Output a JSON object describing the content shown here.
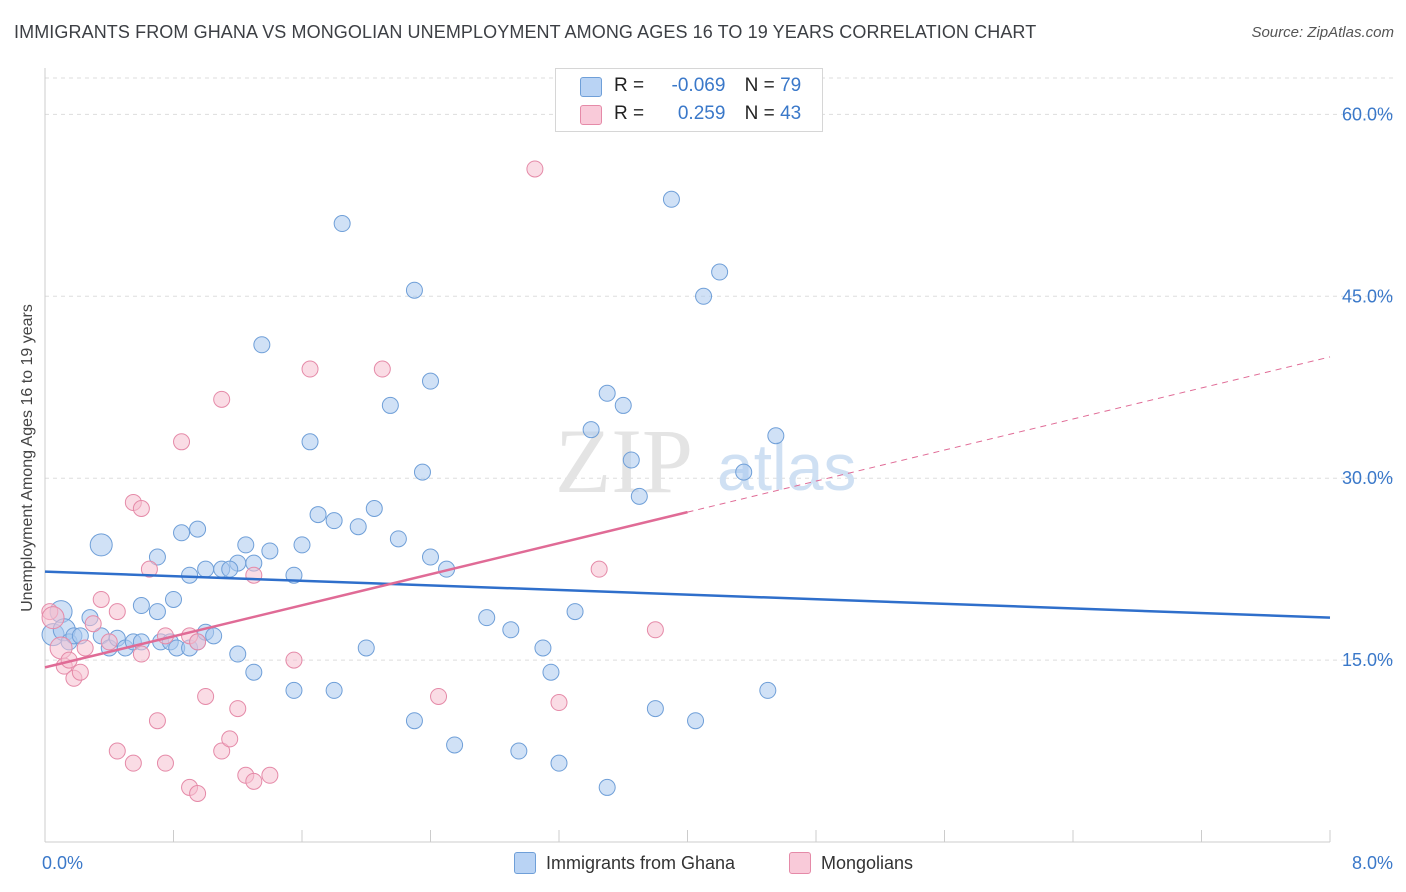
{
  "title": "IMMIGRANTS FROM GHANA VS MONGOLIAN UNEMPLOYMENT AMONG AGES 16 TO 19 YEARS CORRELATION CHART",
  "source": "Source: ZipAtlas.com",
  "watermark": {
    "zip": "ZIP",
    "atlas": "atlas"
  },
  "legend": {
    "rows": [
      {
        "r_label": "R =",
        "r_value": "-0.069",
        "n_label": "N =",
        "n_value": "79"
      },
      {
        "r_label": "R =",
        "r_value": "0.259",
        "n_label": "N =",
        "n_value": "43"
      }
    ]
  },
  "bottom_legend": {
    "series1": "Immigrants from Ghana",
    "series2": "Mongolians"
  },
  "colors": {
    "ghana_fill": "#aac8ef",
    "ghana_stroke": "#6f9fd8",
    "ghana_line": "#2f6fcb",
    "mongol_fill": "#f6bfd0",
    "mongol_stroke": "#e58aa8",
    "mongol_line": "#e06b96",
    "tick_label": "#3a78c9",
    "grid": "#dddddd"
  },
  "chart_data": {
    "type": "scatter",
    "ylabel": "Unemployment Among Ages 16 to 19 years",
    "xlabel": "",
    "x_tick_labels": [
      "0.0%",
      "8.0%"
    ],
    "y_tick_labels": [
      "15.0%",
      "30.0%",
      "45.0%",
      "60.0%"
    ],
    "y_ticks": [
      15,
      30,
      45,
      60
    ],
    "xlim": [
      0,
      8
    ],
    "ylim": [
      0,
      63
    ],
    "series": [
      {
        "name": "Immigrants from Ghana",
        "trend": {
          "x": [
            0,
            8
          ],
          "y": [
            22.3,
            18.5
          ]
        },
        "points": [
          [
            0.05,
            17.1,
            1
          ],
          [
            0.1,
            19.0,
            1
          ],
          [
            0.12,
            17.5,
            1
          ],
          [
            0.15,
            16.5,
            0
          ],
          [
            0.18,
            17.0,
            0
          ],
          [
            0.22,
            17.0,
            0
          ],
          [
            0.28,
            18.5,
            0
          ],
          [
            0.35,
            17.0,
            0
          ],
          [
            0.4,
            16.0,
            0
          ],
          [
            0.45,
            16.8,
            0
          ],
          [
            0.5,
            16.0,
            0
          ],
          [
            0.55,
            16.5,
            0
          ],
          [
            0.6,
            16.5,
            0
          ],
          [
            0.72,
            16.5,
            0
          ],
          [
            0.78,
            16.5,
            0
          ],
          [
            0.82,
            16.0,
            0
          ],
          [
            0.9,
            16.0,
            0
          ],
          [
            0.95,
            16.5,
            0
          ],
          [
            1.0,
            17.3,
            0
          ],
          [
            1.05,
            17.0,
            0
          ],
          [
            0.6,
            19.5,
            0
          ],
          [
            0.7,
            19.0,
            0
          ],
          [
            0.8,
            20.0,
            0
          ],
          [
            0.9,
            22.0,
            0
          ],
          [
            1.0,
            22.5,
            0
          ],
          [
            1.1,
            22.5,
            0
          ],
          [
            1.2,
            23.0,
            0
          ],
          [
            1.3,
            23.0,
            0
          ],
          [
            0.35,
            24.5,
            1
          ],
          [
            0.7,
            23.5,
            0
          ],
          [
            0.85,
            25.5,
            0
          ],
          [
            0.95,
            25.8,
            0
          ],
          [
            1.15,
            22.5,
            0
          ],
          [
            1.25,
            24.5,
            0
          ],
          [
            1.4,
            24.0,
            0
          ],
          [
            1.55,
            22.0,
            0
          ],
          [
            1.6,
            24.5,
            0
          ],
          [
            1.7,
            27.0,
            0
          ],
          [
            1.8,
            26.5,
            0
          ],
          [
            1.95,
            26.0,
            0
          ],
          [
            2.05,
            27.5,
            0
          ],
          [
            2.2,
            25.0,
            0
          ],
          [
            2.4,
            23.5,
            0
          ],
          [
            2.5,
            22.5,
            0
          ],
          [
            2.75,
            18.5,
            0
          ],
          [
            2.9,
            17.5,
            0
          ],
          [
            3.1,
            16.0,
            0
          ],
          [
            3.15,
            14.0,
            0
          ],
          [
            3.3,
            19.0,
            0
          ],
          [
            3.4,
            34.0,
            0
          ],
          [
            3.5,
            37.0,
            0
          ],
          [
            3.6,
            36.0,
            0
          ],
          [
            3.65,
            31.5,
            0
          ],
          [
            3.7,
            28.5,
            0
          ],
          [
            3.9,
            53.0,
            0
          ],
          [
            4.1,
            45.0,
            0
          ],
          [
            4.2,
            47.0,
            0
          ],
          [
            4.35,
            30.5,
            0
          ],
          [
            4.5,
            12.5,
            0
          ],
          [
            1.35,
            41.0,
            0
          ],
          [
            1.65,
            33.0,
            0
          ],
          [
            1.85,
            51.0,
            0
          ],
          [
            2.15,
            36.0,
            0
          ],
          [
            2.3,
            45.5,
            0
          ],
          [
            2.35,
            30.5,
            0
          ],
          [
            2.4,
            38.0,
            0
          ],
          [
            1.2,
            15.5,
            0
          ],
          [
            1.3,
            14.0,
            0
          ],
          [
            1.55,
            12.5,
            0
          ],
          [
            1.8,
            12.5,
            0
          ],
          [
            2.0,
            16.0,
            0
          ],
          [
            2.3,
            10.0,
            0
          ],
          [
            2.55,
            8.0,
            0
          ],
          [
            2.95,
            7.5,
            0
          ],
          [
            3.2,
            6.5,
            0
          ],
          [
            3.5,
            4.5,
            0
          ],
          [
            3.8,
            11.0,
            0
          ],
          [
            4.05,
            10.0,
            0
          ],
          [
            4.55,
            33.5,
            0
          ]
        ]
      },
      {
        "name": "Mongolians",
        "trend": {
          "x": [
            0,
            4.0
          ],
          "y": [
            14.4,
            27.2
          ]
        },
        "trend_dashed": {
          "x": [
            4.0,
            8.0
          ],
          "y": [
            27.2,
            40.0
          ]
        },
        "points": [
          [
            0.03,
            19.0,
            0
          ],
          [
            0.05,
            18.5,
            1
          ],
          [
            0.1,
            16.0,
            1
          ],
          [
            0.12,
            14.5,
            0
          ],
          [
            0.15,
            15.0,
            0
          ],
          [
            0.18,
            13.5,
            0
          ],
          [
            0.22,
            14.0,
            0
          ],
          [
            0.25,
            16.0,
            0
          ],
          [
            0.3,
            18.0,
            0
          ],
          [
            0.35,
            20.0,
            0
          ],
          [
            0.4,
            16.5,
            0
          ],
          [
            0.45,
            19.0,
            0
          ],
          [
            0.55,
            28.0,
            0
          ],
          [
            0.6,
            27.5,
            0
          ],
          [
            0.65,
            22.5,
            0
          ],
          [
            0.75,
            17.0,
            0
          ],
          [
            0.85,
            33.0,
            0
          ],
          [
            0.9,
            17.0,
            0
          ],
          [
            0.95,
            16.5,
            0
          ],
          [
            1.1,
            36.5,
            0
          ],
          [
            1.2,
            11.0,
            0
          ],
          [
            1.3,
            22.0,
            0
          ],
          [
            0.45,
            7.5,
            0
          ],
          [
            0.55,
            6.5,
            0
          ],
          [
            0.7,
            10.0,
            0
          ],
          [
            0.75,
            6.5,
            0
          ],
          [
            0.9,
            4.5,
            0
          ],
          [
            0.95,
            4.0,
            0
          ],
          [
            1.1,
            7.5,
            0
          ],
          [
            1.15,
            8.5,
            0
          ],
          [
            1.25,
            5.5,
            0
          ],
          [
            1.3,
            5.0,
            0
          ],
          [
            1.4,
            5.5,
            0
          ],
          [
            1.55,
            15.0,
            0
          ],
          [
            1.65,
            39.0,
            0
          ],
          [
            2.1,
            39.0,
            0
          ],
          [
            3.05,
            55.5,
            0
          ],
          [
            3.2,
            11.5,
            0
          ],
          [
            3.45,
            22.5,
            0
          ],
          [
            3.8,
            17.5,
            0
          ],
          [
            2.45,
            12.0,
            0
          ],
          [
            1.0,
            12.0,
            0
          ],
          [
            0.6,
            15.5,
            0
          ]
        ]
      }
    ]
  }
}
